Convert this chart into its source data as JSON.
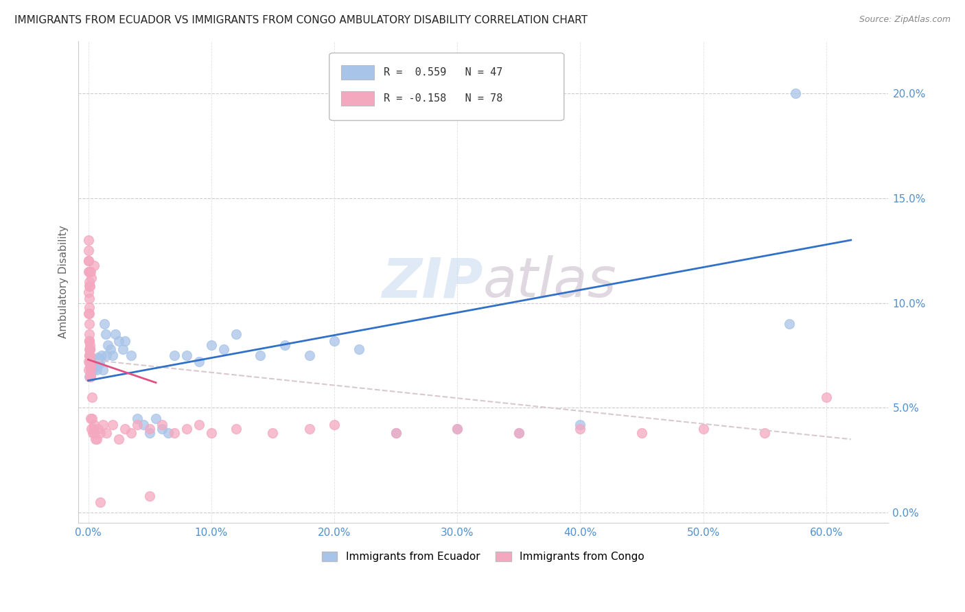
{
  "title": "IMMIGRANTS FROM ECUADOR VS IMMIGRANTS FROM CONGO AMBULATORY DISABILITY CORRELATION CHART",
  "source": "Source: ZipAtlas.com",
  "ylabel": "Ambulatory Disability",
  "x_ticks": [
    0.0,
    0.1,
    0.2,
    0.3,
    0.4,
    0.5,
    0.6
  ],
  "x_tick_labels": [
    "0.0%",
    "10.0%",
    "20.0%",
    "30.0%",
    "40.0%",
    "50.0%",
    "60.0%"
  ],
  "y_ticks": [
    0.0,
    0.05,
    0.1,
    0.15,
    0.2
  ],
  "y_tick_labels": [
    "0.0%",
    "5.0%",
    "10.0%",
    "15.0%",
    "20.0%"
  ],
  "xlim": [
    -0.008,
    0.65
  ],
  "ylim": [
    -0.005,
    0.225
  ],
  "ecuador_R": 0.559,
  "ecuador_N": 47,
  "congo_R": -0.158,
  "congo_N": 78,
  "ecuador_color": "#a8c4e8",
  "ecuador_line_color": "#3070c8",
  "congo_color": "#f4a8c0",
  "congo_line_color": "#e05080",
  "congo_line_dashed_color": "#d8c8d0",
  "background_color": "#ffffff",
  "tick_color": "#5090d0",
  "legend_label_ecuador": "Immigrants from Ecuador",
  "legend_label_congo": "Immigrants from Congo",
  "ecuador_x": [
    0.001,
    0.002,
    0.003,
    0.003,
    0.004,
    0.005,
    0.006,
    0.007,
    0.008,
    0.009,
    0.01,
    0.011,
    0.012,
    0.013,
    0.014,
    0.015,
    0.016,
    0.018,
    0.02,
    0.022,
    0.025,
    0.028,
    0.03,
    0.035,
    0.04,
    0.045,
    0.05,
    0.055,
    0.06,
    0.065,
    0.07,
    0.08,
    0.09,
    0.1,
    0.11,
    0.12,
    0.14,
    0.16,
    0.18,
    0.2,
    0.22,
    0.25,
    0.3,
    0.35,
    0.4,
    0.57,
    0.575
  ],
  "ecuador_y": [
    0.065,
    0.068,
    0.07,
    0.072,
    0.068,
    0.073,
    0.07,
    0.068,
    0.074,
    0.071,
    0.073,
    0.075,
    0.068,
    0.09,
    0.085,
    0.075,
    0.08,
    0.078,
    0.075,
    0.085,
    0.082,
    0.078,
    0.082,
    0.075,
    0.045,
    0.042,
    0.038,
    0.045,
    0.04,
    0.038,
    0.075,
    0.075,
    0.072,
    0.08,
    0.078,
    0.085,
    0.075,
    0.08,
    0.075,
    0.082,
    0.078,
    0.038,
    0.04,
    0.038,
    0.042,
    0.09,
    0.2
  ],
  "congo_x": [
    0.0001,
    0.0002,
    0.0003,
    0.0004,
    0.0005,
    0.0005,
    0.0006,
    0.0006,
    0.0007,
    0.0007,
    0.0008,
    0.0008,
    0.0009,
    0.0009,
    0.001,
    0.001,
    0.001,
    0.0011,
    0.0011,
    0.0012,
    0.0012,
    0.0013,
    0.0013,
    0.0014,
    0.0015,
    0.0015,
    0.0016,
    0.0017,
    0.0018,
    0.0019,
    0.002,
    0.0022,
    0.0025,
    0.0028,
    0.003,
    0.0035,
    0.004,
    0.0045,
    0.005,
    0.006,
    0.007,
    0.008,
    0.01,
    0.012,
    0.015,
    0.02,
    0.025,
    0.03,
    0.035,
    0.04,
    0.05,
    0.06,
    0.07,
    0.08,
    0.09,
    0.1,
    0.12,
    0.15,
    0.18,
    0.2,
    0.25,
    0.3,
    0.35,
    0.4,
    0.45,
    0.5,
    0.55,
    0.6,
    0.0001,
    0.0003,
    0.0005,
    0.0008,
    0.0012,
    0.0018,
    0.0025,
    0.005,
    0.01,
    0.05
  ],
  "congo_y": [
    0.13,
    0.12,
    0.115,
    0.125,
    0.12,
    0.105,
    0.115,
    0.108,
    0.098,
    0.11,
    0.082,
    0.095,
    0.075,
    0.09,
    0.082,
    0.078,
    0.085,
    0.082,
    0.075,
    0.078,
    0.072,
    0.08,
    0.075,
    0.07,
    0.078,
    0.065,
    0.072,
    0.068,
    0.065,
    0.07,
    0.065,
    0.045,
    0.04,
    0.055,
    0.045,
    0.038,
    0.04,
    0.042,
    0.038,
    0.035,
    0.035,
    0.04,
    0.038,
    0.042,
    0.038,
    0.042,
    0.035,
    0.04,
    0.038,
    0.042,
    0.04,
    0.042,
    0.038,
    0.04,
    0.042,
    0.038,
    0.04,
    0.038,
    0.04,
    0.042,
    0.038,
    0.04,
    0.038,
    0.04,
    0.038,
    0.04,
    0.038,
    0.055,
    0.068,
    0.072,
    0.095,
    0.102,
    0.108,
    0.115,
    0.112,
    0.118,
    0.005,
    0.008
  ]
}
